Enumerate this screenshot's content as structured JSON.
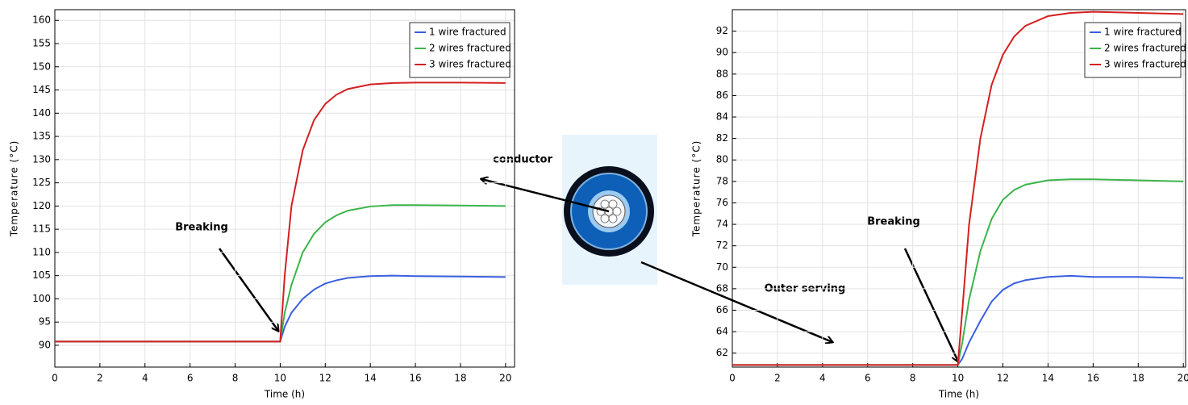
{
  "chart_data": [
    {
      "type": "line",
      "xlabel": "Time (h)",
      "ylabel": "Temperature (°C)",
      "x": [
        0,
        10,
        10.2,
        10.5,
        11,
        11.5,
        12,
        12.5,
        13,
        14,
        15,
        16,
        18,
        20
      ],
      "xlim": [
        0,
        20.4
      ],
      "xticks": [
        0,
        2,
        4,
        6,
        8,
        10,
        12,
        14,
        16,
        18,
        20
      ],
      "ylim": [
        85.3,
        162.3
      ],
      "yticks": [
        90,
        95,
        100,
        105,
        110,
        115,
        120,
        125,
        130,
        135,
        140,
        145,
        150,
        155,
        160
      ],
      "grid": true,
      "legend": "upper right",
      "annotations": [
        "Breaking"
      ],
      "series": [
        {
          "name": "1 wire fractured",
          "color": "#3a5fe0",
          "values": [
            90.8,
            90.8,
            94,
            97,
            100,
            102,
            103.3,
            104,
            104.5,
            104.9,
            105,
            104.9,
            104.8,
            104.7
          ]
        },
        {
          "name": "2 wires fractured",
          "color": "#3cb44b",
          "values": [
            90.8,
            90.8,
            97,
            103,
            110,
            114,
            116.5,
            118,
            119,
            119.9,
            120.2,
            120.2,
            120.1,
            120.0
          ]
        },
        {
          "name": "3 wires fractured",
          "color": "#d42020",
          "values": [
            90.8,
            90.8,
            105,
            120,
            132,
            138.5,
            142,
            144,
            145.2,
            146.2,
            146.5,
            146.6,
            146.6,
            146.5
          ]
        }
      ]
    },
    {
      "type": "line",
      "xlabel": "Time (h)",
      "ylabel": "Temperature (°C)",
      "x": [
        0,
        10,
        10.2,
        10.5,
        11,
        11.5,
        12,
        12.5,
        13,
        14,
        15,
        16,
        18,
        20
      ],
      "xlim": [
        0,
        20.1
      ],
      "xticks": [
        0,
        2,
        4,
        6,
        8,
        10,
        12,
        14,
        16,
        18,
        20
      ],
      "ylim": [
        60.7,
        94.0
      ],
      "yticks": [
        62,
        64,
        66,
        68,
        70,
        72,
        74,
        76,
        78,
        80,
        82,
        84,
        86,
        88,
        90,
        92
      ],
      "grid": true,
      "legend": "upper right",
      "annotations": [
        "Breaking"
      ],
      "series": [
        {
          "name": "1 wire fractured",
          "color": "#3a5fe0",
          "values": [
            60.9,
            60.9,
            61.5,
            63,
            65,
            66.8,
            67.9,
            68.5,
            68.8,
            69.1,
            69.2,
            69.1,
            69.1,
            69.0
          ]
        },
        {
          "name": "2 wires fractured",
          "color": "#3cb44b",
          "values": [
            60.9,
            60.9,
            63,
            67,
            71.5,
            74.5,
            76.3,
            77.2,
            77.7,
            78.1,
            78.2,
            78.2,
            78.1,
            78.0
          ]
        },
        {
          "name": "3 wires fractured",
          "color": "#d42020",
          "values": [
            60.9,
            60.9,
            66,
            74,
            82,
            87,
            89.8,
            91.5,
            92.5,
            93.4,
            93.7,
            93.8,
            93.7,
            93.6
          ]
        }
      ]
    }
  ],
  "diagram": {
    "labels": [
      "conductor",
      "Outer serving"
    ]
  }
}
